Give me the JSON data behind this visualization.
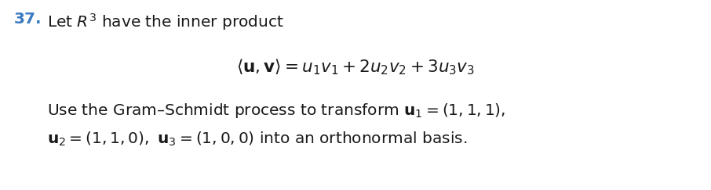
{
  "number_color": "#3a7abf",
  "number_text": "37.",
  "line1_text": "Let $R^3$ have the inner product",
  "line2_math": "$\\langle\\mathbf{u},\\mathbf{v}\\rangle = u_1v_1 + 2u_2v_2 + 3u_3v_3$",
  "line3_text": "Use the Gram–Schmidt process to transform $\\mathbf{u}_1 = (1,1,1),$",
  "line4_text": "$\\mathbf{u}_2 = (1,1,0),\\ \\mathbf{u}_3 = (1,0,0)$ into an orthonormal basis.",
  "bg_color": "#ffffff",
  "text_color": "#1a1a1a",
  "fontsize_main": 14.5,
  "fontsize_math": 15.5,
  "fig_width": 9.06,
  "fig_height": 2.43,
  "dpi": 100
}
